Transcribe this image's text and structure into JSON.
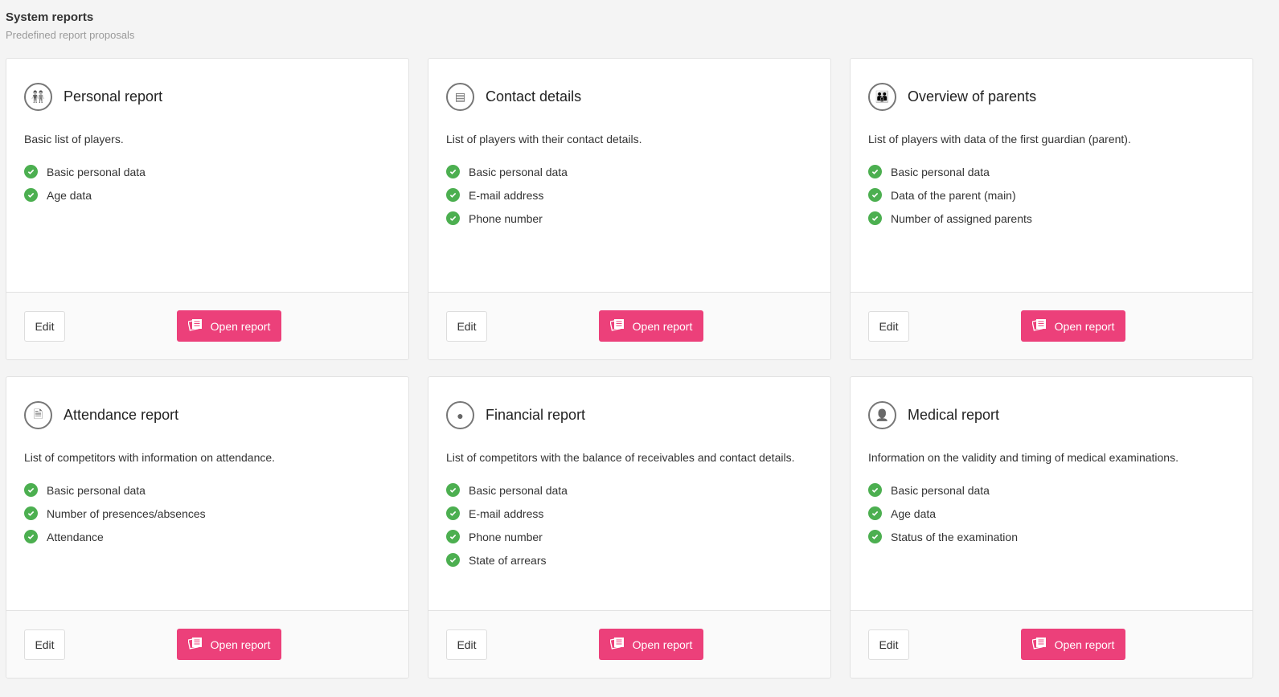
{
  "header": {
    "title": "System reports",
    "subtitle": "Predefined report proposals"
  },
  "accent": "#ec407a",
  "check_color": "#4caf50",
  "cards": [
    {
      "icon": "people-icon",
      "title": "Personal report",
      "description": "Basic list of players.",
      "features": [
        "Basic personal data",
        "Age data"
      ],
      "edit_label": "Edit",
      "open_label": "Open report"
    },
    {
      "icon": "address-book-icon",
      "title": "Contact details",
      "description": "List of players with their contact details.",
      "features": [
        "Basic personal data",
        "E-mail address",
        "Phone number"
      ],
      "edit_label": "Edit",
      "open_label": "Open report"
    },
    {
      "icon": "family-icon",
      "title": "Overview of parents",
      "description": "List of players with data of the first guardian (parent).",
      "features": [
        "Basic personal data",
        "Data of the parent (main)",
        "Number of assigned parents"
      ],
      "edit_label": "Edit",
      "open_label": "Open report"
    },
    {
      "icon": "document-check-icon",
      "title": "Attendance report",
      "description": "List of competitors with information on attendance.",
      "features": [
        "Basic personal data",
        "Number of presences/absences",
        "Attendance"
      ],
      "edit_label": "Edit",
      "open_label": "Open report"
    },
    {
      "icon": "piggy-bank-icon",
      "title": "Financial report",
      "description": "List of competitors with the balance of receivables and contact details.",
      "features": [
        "Basic personal data",
        "E-mail address",
        "Phone number",
        "State of arrears"
      ],
      "edit_label": "Edit",
      "open_label": "Open report"
    },
    {
      "icon": "medical-user-icon",
      "title": "Medical report",
      "description": "Information on the validity and timing of medical examinations.",
      "features": [
        "Basic personal data",
        "Age data",
        "Status of the examination"
      ],
      "edit_label": "Edit",
      "open_label": "Open report"
    }
  ]
}
